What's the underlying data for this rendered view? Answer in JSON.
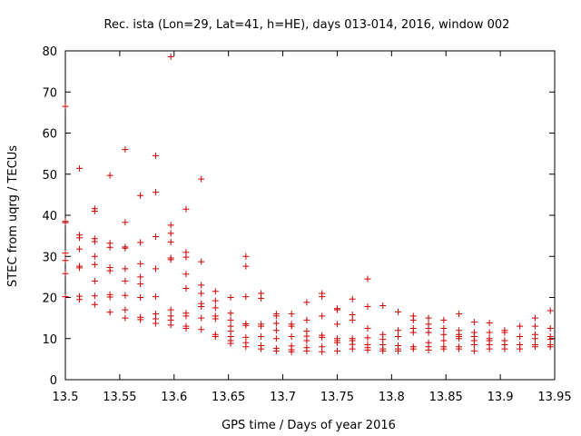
{
  "chart_data": {
    "type": "scatter",
    "title": "Rec. ista (Lon=29, Lat=41, h=HE), days 013-014, 2016, window 002",
    "xlabel": "GPS time / Days of year 2016",
    "ylabel": "STEC from uqrg / TECUs",
    "xlim": [
      13.5,
      13.95
    ],
    "ylim": [
      0,
      80
    ],
    "xticks": [
      "13.5",
      "13.55",
      "13.6",
      "13.65",
      "13.7",
      "13.75",
      "13.8",
      "13.85",
      "13.9",
      "13.95"
    ],
    "yticks": [
      "0",
      "10",
      "20",
      "30",
      "40",
      "50",
      "60",
      "70",
      "80"
    ],
    "grid": false,
    "legend": "none",
    "marker": "plus",
    "color": "#d00000",
    "series": [
      {
        "points": [
          [
            13.5,
            66.5
          ],
          [
            13.5,
            38.5
          ],
          [
            13.5,
            38.2
          ],
          [
            13.5,
            30.8
          ],
          [
            13.5,
            29.0
          ],
          [
            13.5,
            25.8
          ],
          [
            13.5,
            20.2
          ],
          [
            13.513,
            51.4
          ],
          [
            13.513,
            35.2
          ],
          [
            13.513,
            34.5
          ],
          [
            13.513,
            31.8
          ],
          [
            13.513,
            27.6
          ],
          [
            13.513,
            27.2
          ],
          [
            13.513,
            20.3
          ],
          [
            13.513,
            19.5
          ],
          [
            13.527,
            41.6
          ],
          [
            13.527,
            41.0
          ],
          [
            13.527,
            34.3
          ],
          [
            13.527,
            33.6
          ],
          [
            13.527,
            30.0
          ],
          [
            13.527,
            28.0
          ],
          [
            13.527,
            24.0
          ],
          [
            13.527,
            20.4
          ],
          [
            13.527,
            18.3
          ],
          [
            13.541,
            49.7
          ],
          [
            13.541,
            33.2
          ],
          [
            13.541,
            32.2
          ],
          [
            13.541,
            27.3
          ],
          [
            13.541,
            26.5
          ],
          [
            13.541,
            20.7
          ],
          [
            13.541,
            20.1
          ],
          [
            13.541,
            16.4
          ],
          [
            13.555,
            56.0
          ],
          [
            13.555,
            38.3
          ],
          [
            13.555,
            32.3
          ],
          [
            13.555,
            32.0
          ],
          [
            13.555,
            27.0
          ],
          [
            13.555,
            24.0
          ],
          [
            13.555,
            20.5
          ],
          [
            13.555,
            17.0
          ],
          [
            13.555,
            15.0
          ],
          [
            13.569,
            44.8
          ],
          [
            13.569,
            33.4
          ],
          [
            13.569,
            28.2
          ],
          [
            13.569,
            25.0
          ],
          [
            13.569,
            23.3
          ],
          [
            13.569,
            20.0
          ],
          [
            13.569,
            15.2
          ],
          [
            13.569,
            14.6
          ],
          [
            13.583,
            54.5
          ],
          [
            13.583,
            45.6
          ],
          [
            13.583,
            34.8
          ],
          [
            13.583,
            27.0
          ],
          [
            13.583,
            20.2
          ],
          [
            13.583,
            16.0
          ],
          [
            13.583,
            14.8
          ],
          [
            13.583,
            13.7
          ],
          [
            13.597,
            78.6
          ],
          [
            13.597,
            37.6
          ],
          [
            13.597,
            35.6
          ],
          [
            13.597,
            33.5
          ],
          [
            13.597,
            29.6
          ],
          [
            13.597,
            29.2
          ],
          [
            13.597,
            17.0
          ],
          [
            13.597,
            15.5
          ],
          [
            13.597,
            14.5
          ],
          [
            13.597,
            13.3
          ],
          [
            13.611,
            41.5
          ],
          [
            13.611,
            31.0
          ],
          [
            13.611,
            29.8
          ],
          [
            13.611,
            25.7
          ],
          [
            13.611,
            22.2
          ],
          [
            13.611,
            16.2
          ],
          [
            13.611,
            15.5
          ],
          [
            13.611,
            13.0
          ],
          [
            13.611,
            12.5
          ],
          [
            13.625,
            48.8
          ],
          [
            13.625,
            28.7
          ],
          [
            13.625,
            23.0
          ],
          [
            13.625,
            21.0
          ],
          [
            13.625,
            18.5
          ],
          [
            13.625,
            17.8
          ],
          [
            13.625,
            15.0
          ],
          [
            13.625,
            12.2
          ],
          [
            13.638,
            21.5
          ],
          [
            13.638,
            19.2
          ],
          [
            13.638,
            17.5
          ],
          [
            13.638,
            15.5
          ],
          [
            13.638,
            14.8
          ],
          [
            13.638,
            11.0
          ],
          [
            13.638,
            10.5
          ],
          [
            13.652,
            20.0
          ],
          [
            13.652,
            16.2
          ],
          [
            13.652,
            14.5
          ],
          [
            13.652,
            13.0
          ],
          [
            13.652,
            11.8
          ],
          [
            13.652,
            10.5
          ],
          [
            13.652,
            9.5
          ],
          [
            13.652,
            8.8
          ],
          [
            13.666,
            30.0
          ],
          [
            13.666,
            27.6
          ],
          [
            13.666,
            20.2
          ],
          [
            13.666,
            13.6
          ],
          [
            13.666,
            13.2
          ],
          [
            13.666,
            10.3
          ],
          [
            13.666,
            9.0
          ],
          [
            13.666,
            8.0
          ],
          [
            13.68,
            21.0
          ],
          [
            13.68,
            19.8
          ],
          [
            13.68,
            13.5
          ],
          [
            13.68,
            13.0
          ],
          [
            13.68,
            10.5
          ],
          [
            13.68,
            8.3
          ],
          [
            13.68,
            7.5
          ],
          [
            13.694,
            16.0
          ],
          [
            13.694,
            15.5
          ],
          [
            13.694,
            13.7
          ],
          [
            13.694,
            12.0
          ],
          [
            13.694,
            10.0
          ],
          [
            13.694,
            7.6
          ],
          [
            13.694,
            7.0
          ],
          [
            13.708,
            16.0
          ],
          [
            13.708,
            13.5
          ],
          [
            13.708,
            13.0
          ],
          [
            13.708,
            10.5
          ],
          [
            13.708,
            8.2
          ],
          [
            13.708,
            7.3
          ],
          [
            13.708,
            6.8
          ],
          [
            13.722,
            18.8
          ],
          [
            13.722,
            14.5
          ],
          [
            13.722,
            11.8
          ],
          [
            13.722,
            10.6
          ],
          [
            13.722,
            9.5
          ],
          [
            13.722,
            7.8
          ],
          [
            13.722,
            7.0
          ],
          [
            13.736,
            21.0
          ],
          [
            13.736,
            20.2
          ],
          [
            13.736,
            15.5
          ],
          [
            13.736,
            10.8
          ],
          [
            13.736,
            10.3
          ],
          [
            13.736,
            8.0
          ],
          [
            13.736,
            6.8
          ],
          [
            13.75,
            17.3
          ],
          [
            13.75,
            17.0
          ],
          [
            13.75,
            13.5
          ],
          [
            13.75,
            10.0
          ],
          [
            13.75,
            9.5
          ],
          [
            13.75,
            9.0
          ],
          [
            13.75,
            7.0
          ],
          [
            13.764,
            19.6
          ],
          [
            13.764,
            15.8
          ],
          [
            13.764,
            14.5
          ],
          [
            13.764,
            10.0
          ],
          [
            13.764,
            9.5
          ],
          [
            13.764,
            8.6
          ],
          [
            13.764,
            7.5
          ],
          [
            13.778,
            24.5
          ],
          [
            13.778,
            17.8
          ],
          [
            13.778,
            12.5
          ],
          [
            13.778,
            10.2
          ],
          [
            13.778,
            8.5
          ],
          [
            13.778,
            7.8
          ],
          [
            13.778,
            7.2
          ],
          [
            13.792,
            18.0
          ],
          [
            13.792,
            11.0
          ],
          [
            13.792,
            9.8
          ],
          [
            13.792,
            8.5
          ],
          [
            13.792,
            7.5
          ],
          [
            13.792,
            7.0
          ],
          [
            13.806,
            16.5
          ],
          [
            13.806,
            12.0
          ],
          [
            13.806,
            10.5
          ],
          [
            13.806,
            8.3
          ],
          [
            13.806,
            7.5
          ],
          [
            13.806,
            7.0
          ],
          [
            13.82,
            15.5
          ],
          [
            13.82,
            14.5
          ],
          [
            13.82,
            12.5
          ],
          [
            13.82,
            11.5
          ],
          [
            13.82,
            8.0
          ],
          [
            13.82,
            7.5
          ],
          [
            13.834,
            15.0
          ],
          [
            13.834,
            13.5
          ],
          [
            13.834,
            12.5
          ],
          [
            13.834,
            11.5
          ],
          [
            13.834,
            9.0
          ],
          [
            13.834,
            8.0
          ],
          [
            13.834,
            7.2
          ],
          [
            13.848,
            14.5
          ],
          [
            13.848,
            12.5
          ],
          [
            13.848,
            11.0
          ],
          [
            13.848,
            9.5
          ],
          [
            13.848,
            8.0
          ],
          [
            13.848,
            7.5
          ],
          [
            13.862,
            16.0
          ],
          [
            13.862,
            12.0
          ],
          [
            13.862,
            11.0
          ],
          [
            13.862,
            10.5
          ],
          [
            13.862,
            10.0
          ],
          [
            13.862,
            8.0
          ],
          [
            13.862,
            7.5
          ],
          [
            13.876,
            14.0
          ],
          [
            13.876,
            11.5
          ],
          [
            13.876,
            10.5
          ],
          [
            13.876,
            9.5
          ],
          [
            13.876,
            8.5
          ],
          [
            13.876,
            7.0
          ],
          [
            13.89,
            13.8
          ],
          [
            13.89,
            11.5
          ],
          [
            13.89,
            10.0
          ],
          [
            13.89,
            9.5
          ],
          [
            13.89,
            8.5
          ],
          [
            13.89,
            7.5
          ],
          [
            13.904,
            12.0
          ],
          [
            13.904,
            11.5
          ],
          [
            13.904,
            9.5
          ],
          [
            13.904,
            8.5
          ],
          [
            13.904,
            7.5
          ],
          [
            13.918,
            13.0
          ],
          [
            13.918,
            10.5
          ],
          [
            13.918,
            8.5
          ],
          [
            13.918,
            7.5
          ],
          [
            13.932,
            15.0
          ],
          [
            13.932,
            13.0
          ],
          [
            13.932,
            11.0
          ],
          [
            13.932,
            10.0
          ],
          [
            13.932,
            8.5
          ],
          [
            13.932,
            8.0
          ],
          [
            13.946,
            16.8
          ],
          [
            13.946,
            12.5
          ],
          [
            13.946,
            10.5
          ],
          [
            13.946,
            9.8
          ],
          [
            13.946,
            8.5
          ],
          [
            13.946,
            8.0
          ]
        ]
      }
    ]
  }
}
